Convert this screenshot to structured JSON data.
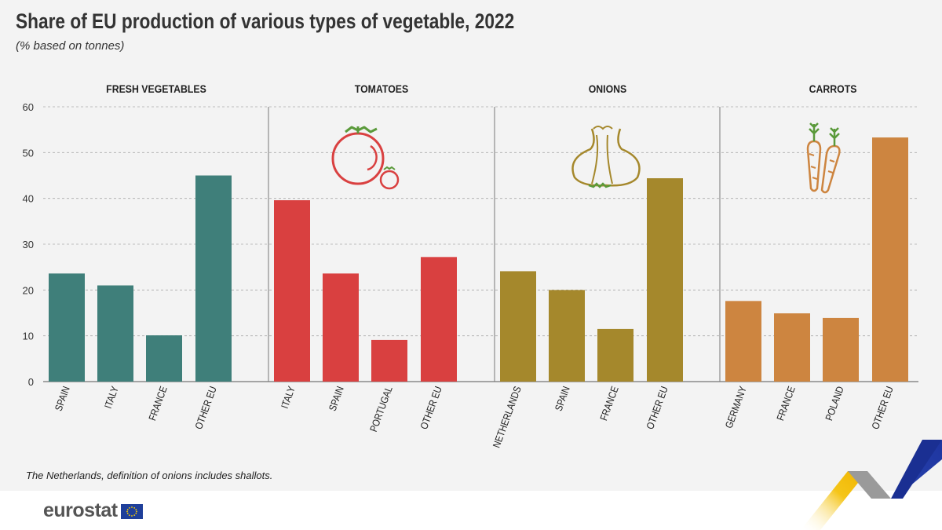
{
  "title": "Share of EU production of various types of vegetable, 2022",
  "subtitle": "(% based on tonnes)",
  "footnote": "The Netherlands, definition of onions includes shallots.",
  "logo_text": "eurostat",
  "chart_data": {
    "type": "bar",
    "ylim": [
      0,
      60
    ],
    "yticks": [
      0,
      10,
      20,
      30,
      40,
      50,
      60
    ],
    "grid": true,
    "panels": [
      {
        "title": "FRESH VEGETABLES",
        "color": "#3f7f7a",
        "icon": "none",
        "categories": [
          "SPAIN",
          "ITALY",
          "FRANCE",
          "OTHER EU"
        ],
        "values": [
          23.6,
          21.0,
          10.1,
          45.0
        ]
      },
      {
        "title": "TOMATOES",
        "color": "#d94040",
        "icon": "tomato-icon",
        "categories": [
          "ITALY",
          "SPAIN",
          "PORTUGAL",
          "OTHER EU"
        ],
        "values": [
          39.6,
          23.6,
          9.1,
          27.2
        ]
      },
      {
        "title": "ONIONS",
        "color": "#a5882c",
        "icon": "onion-icon",
        "categories": [
          "NETHERLANDS",
          "SPAIN",
          "FRANCE",
          "OTHER EU"
        ],
        "values": [
          24.1,
          20.0,
          11.5,
          44.4
        ]
      },
      {
        "title": "CARROTS",
        "color": "#cd8540",
        "icon": "carrot-icon",
        "categories": [
          "GERMANY",
          "FRANCE",
          "POLAND",
          "OTHER EU"
        ],
        "values": [
          17.6,
          14.9,
          13.9,
          53.3
        ]
      }
    ]
  }
}
